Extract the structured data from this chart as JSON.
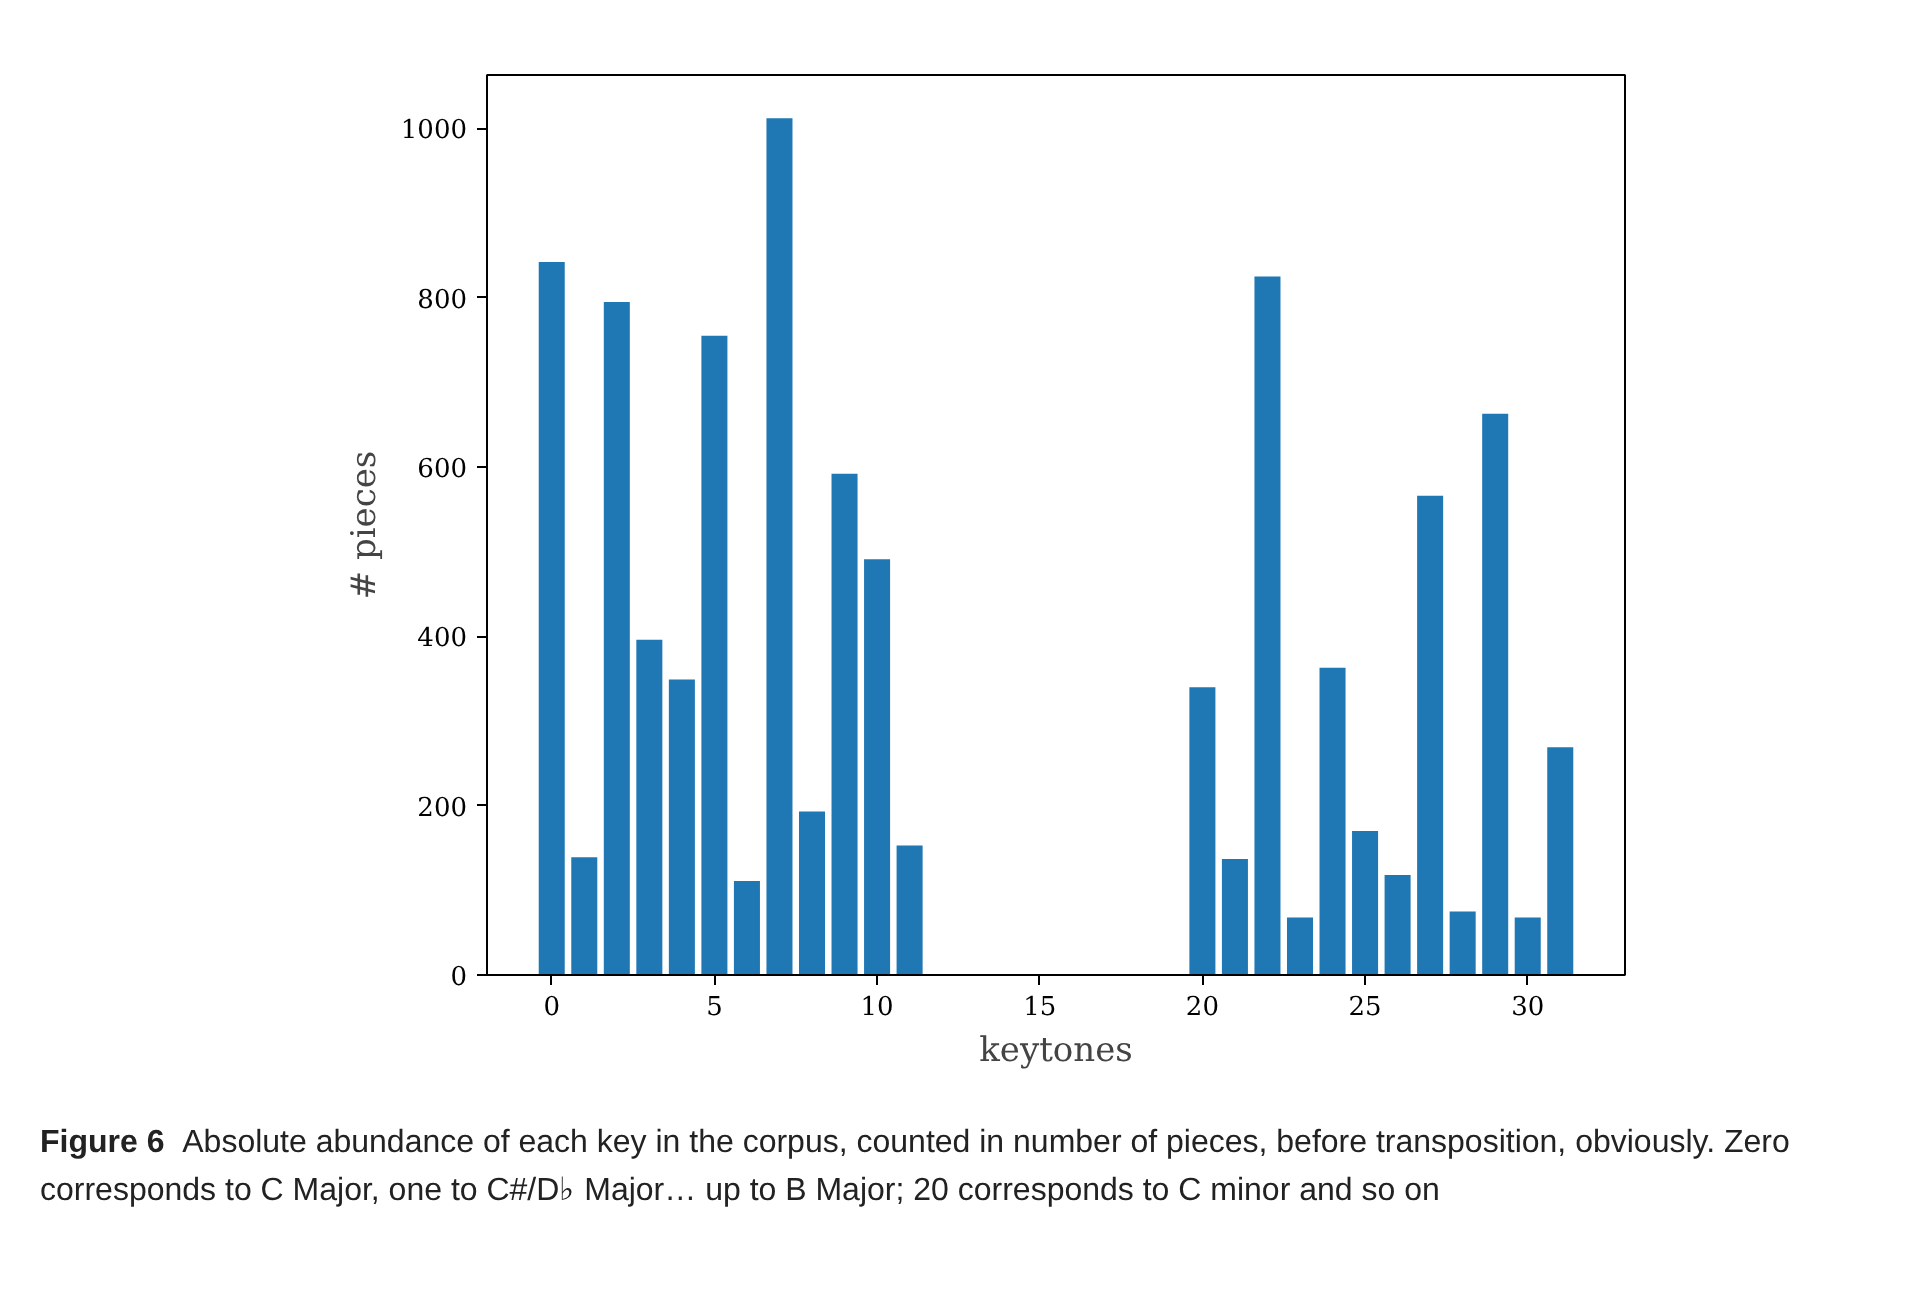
{
  "chart_data": {
    "type": "bar",
    "xlabel": "keytones",
    "ylabel": "# pieces",
    "x": [
      0,
      1,
      2,
      3,
      4,
      5,
      6,
      7,
      8,
      9,
      10,
      11,
      20,
      21,
      22,
      23,
      24,
      25,
      26,
      27,
      28,
      29,
      30,
      31
    ],
    "values": [
      842,
      139,
      795,
      396,
      349,
      755,
      111,
      1012,
      193,
      592,
      491,
      153,
      340,
      137,
      825,
      68,
      363,
      170,
      118,
      566,
      75,
      663,
      68,
      269
    ],
    "color": "#1f77b4",
    "xlim": [
      -1.99,
      32.99
    ],
    "xticks": [
      0,
      5,
      10,
      15,
      20,
      25,
      30
    ],
    "ylim": [
      0,
      1063
    ],
    "yticks": [
      0,
      200,
      400,
      600,
      800,
      1000
    ],
    "grid": false,
    "annotations": [
      "Figure 6  Absolute abundance of each key in the corpus, counted in number of pieces, before transposition, obviously. Zero corresponds to C Major, one to C#/D♭ Major… up to B Major; 20 corresponds to C minor and so on"
    ]
  }
}
